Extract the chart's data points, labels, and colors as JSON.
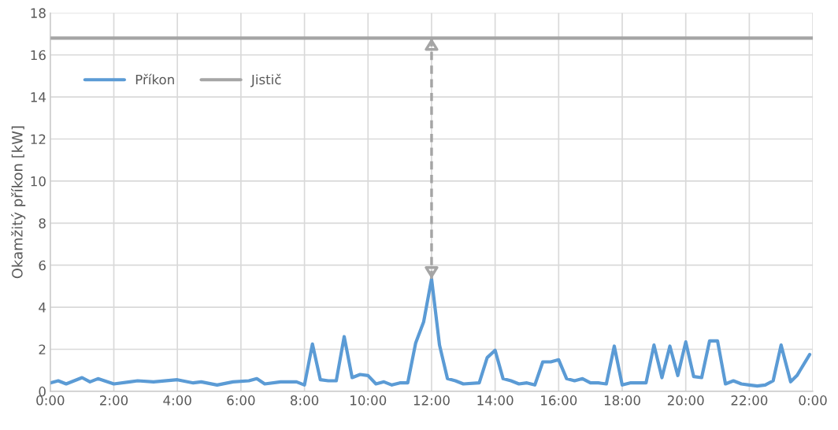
{
  "chart_data": {
    "type": "line",
    "ylabel": "Okamžitý příkon [kW]",
    "xlim": [
      0,
      24
    ],
    "xticks": [
      {
        "value": 0,
        "label": "0:00"
      },
      {
        "value": 2,
        "label": "2:00"
      },
      {
        "value": 4,
        "label": "4:00"
      },
      {
        "value": 6,
        "label": "6:00"
      },
      {
        "value": 8,
        "label": "8:00"
      },
      {
        "value": 10,
        "label": "10:00"
      },
      {
        "value": 12,
        "label": "12:00"
      },
      {
        "value": 14,
        "label": "14:00"
      },
      {
        "value": 16,
        "label": "16:00"
      },
      {
        "value": 18,
        "label": "18:00"
      },
      {
        "value": 20,
        "label": "20:00"
      },
      {
        "value": 22,
        "label": "22:00"
      },
      {
        "value": 24,
        "label": "0:00"
      }
    ],
    "ylim": [
      0,
      18
    ],
    "yticks": [
      0,
      2,
      4,
      6,
      8,
      10,
      12,
      14,
      16,
      18
    ],
    "grid": true,
    "legend": "top left",
    "series": [
      {
        "name": "Příkon",
        "color": "#5b9bd5",
        "x": [
          0,
          0.25,
          0.5,
          1.0,
          1.25,
          1.5,
          2.0,
          2.5,
          2.75,
          3.25,
          4.0,
          4.5,
          4.75,
          5.25,
          5.75,
          6.25,
          6.5,
          6.75,
          7.25,
          7.75,
          8.0,
          8.25,
          8.5,
          8.75,
          9.0,
          9.25,
          9.5,
          9.75,
          10.0,
          10.25,
          10.5,
          10.75,
          11.0,
          11.25,
          11.5,
          11.75,
          12.0,
          12.25,
          12.5,
          12.75,
          13.0,
          13.5,
          13.75,
          14.0,
          14.25,
          14.5,
          14.75,
          15.0,
          15.25,
          15.5,
          15.75,
          16.0,
          16.25,
          16.5,
          16.75,
          17.0,
          17.25,
          17.5,
          17.75,
          18.0,
          18.25,
          18.75,
          19.0,
          19.25,
          19.5,
          19.75,
          20.0,
          20.25,
          20.5,
          20.75,
          21.0,
          21.25,
          21.5,
          21.75,
          22.0,
          22.25,
          22.5,
          22.75,
          23.0,
          23.3,
          23.5,
          23.9
        ],
        "values": [
          0.4,
          0.5,
          0.35,
          0.65,
          0.45,
          0.6,
          0.35,
          0.45,
          0.5,
          0.45,
          0.55,
          0.4,
          0.45,
          0.3,
          0.45,
          0.5,
          0.6,
          0.35,
          0.45,
          0.45,
          0.3,
          2.25,
          0.55,
          0.5,
          0.5,
          2.6,
          0.65,
          0.8,
          0.75,
          0.35,
          0.45,
          0.3,
          0.4,
          0.4,
          2.3,
          3.3,
          5.35,
          2.2,
          0.6,
          0.5,
          0.35,
          0.4,
          1.6,
          1.95,
          0.6,
          0.5,
          0.35,
          0.4,
          0.3,
          1.4,
          1.4,
          1.5,
          0.6,
          0.5,
          0.6,
          0.4,
          0.4,
          0.35,
          2.15,
          0.3,
          0.4,
          0.4,
          2.2,
          0.65,
          2.15,
          0.75,
          2.35,
          0.7,
          0.65,
          2.4,
          2.4,
          0.35,
          0.5,
          0.35,
          0.3,
          0.25,
          0.3,
          0.5,
          2.2,
          0.45,
          0.75,
          1.75
        ]
      },
      {
        "name": "Jistič",
        "color": "#a5a5a5",
        "x": [
          0,
          24
        ],
        "values": [
          16.8,
          16.8
        ]
      },
      {
        "color": "#a5a5a5",
        "line_style": "dashed",
        "x": [
          12,
          12
        ],
        "values": [
          5.35,
          16.8
        ]
      }
    ]
  }
}
